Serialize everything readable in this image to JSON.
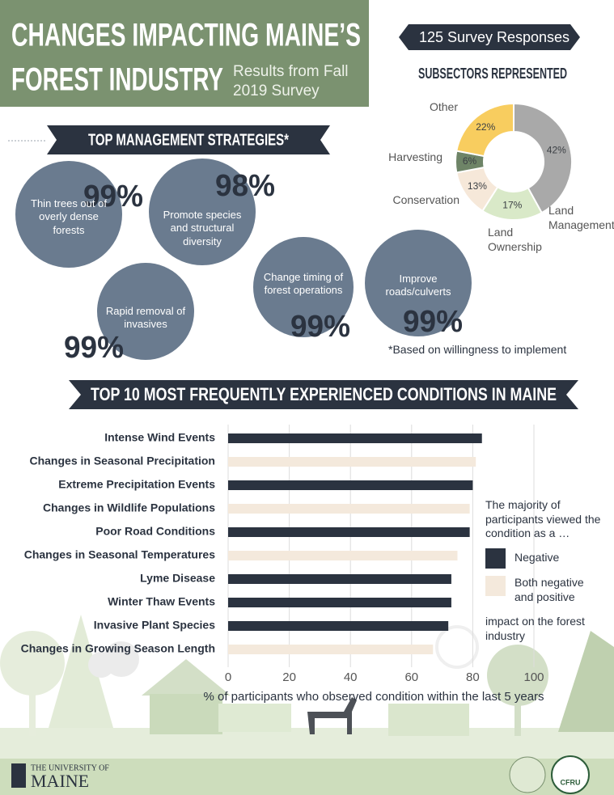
{
  "header": {
    "title_lines": [
      "CHANGES IMPACTING MAINE’S",
      "FOREST INDUSTRY"
    ],
    "subtitle_lines": [
      "Results from Fall",
      "2019 Survey"
    ],
    "responses": "125 Survey Responses"
  },
  "strategies": {
    "title": "TOP MANAGEMENT STRATEGIES*",
    "items": [
      {
        "label": "Thin trees out of overly dense forests",
        "percent": "99%"
      },
      {
        "label": "Promote species and structural diversity",
        "percent": "98%"
      },
      {
        "label": "Rapid removal of invasives",
        "percent": "99%"
      },
      {
        "label": "Change timing of forest operations",
        "percent": "99%"
      },
      {
        "label": "Improve roads/culverts",
        "percent": "99%"
      }
    ],
    "footnote": "*Based on willingness to implement"
  },
  "chart_data": [
    {
      "type": "pie",
      "donut": true,
      "title": "SUBSECTORS REPRESENTED",
      "categories": [
        "Land Management",
        "Land Ownership",
        "Conservation",
        "Harvesting",
        "Other"
      ],
      "values": [
        42,
        17,
        13,
        6,
        22
      ],
      "value_labels": [
        "42%",
        "17%",
        "13%",
        "6%",
        "22%"
      ],
      "colors": [
        "#a9a9a9",
        "#d9e9c8",
        "#f6e8d9",
        "#6e8467",
        "#f8cd5f"
      ]
    },
    {
      "type": "bar",
      "orientation": "horizontal",
      "title": "TOP 10 MOST FREQUENTLY EXPERIENCED CONDITIONS IN MAINE",
      "categories": [
        "Intense Wind Events",
        "Changes in Seasonal Precipitation",
        "Extreme Precipitation Events",
        "Changes in Wildlife Populations",
        "Poor Road Conditions",
        "Changes in Seasonal Temperatures",
        "Lyme Disease",
        "Winter Thaw Events",
        "Invasive Plant Species",
        "Changes in Growing Season Length"
      ],
      "series": [
        {
          "name": "Negative",
          "color": "#2b3340",
          "values": [
            83,
            null,
            80,
            null,
            79,
            null,
            73,
            73,
            72,
            null
          ]
        },
        {
          "name": "Both negative and positive",
          "color": "#f4e9dc",
          "values": [
            null,
            81,
            null,
            79,
            null,
            75,
            null,
            null,
            null,
            67
          ]
        }
      ],
      "xlim": [
        0,
        100
      ],
      "xticks": [
        0,
        20,
        40,
        60,
        80,
        100
      ],
      "grid": true,
      "xlabel": "% of participants who observed condition within the last 5 years",
      "legend_title": "The majority of participants viewed the condition as a …",
      "legend_note": "impact on the forest industry"
    }
  ],
  "footer": {
    "university_lines": [
      "THE UNIVERSITY OF",
      "MAINE"
    ],
    "partner": "CFRU"
  }
}
